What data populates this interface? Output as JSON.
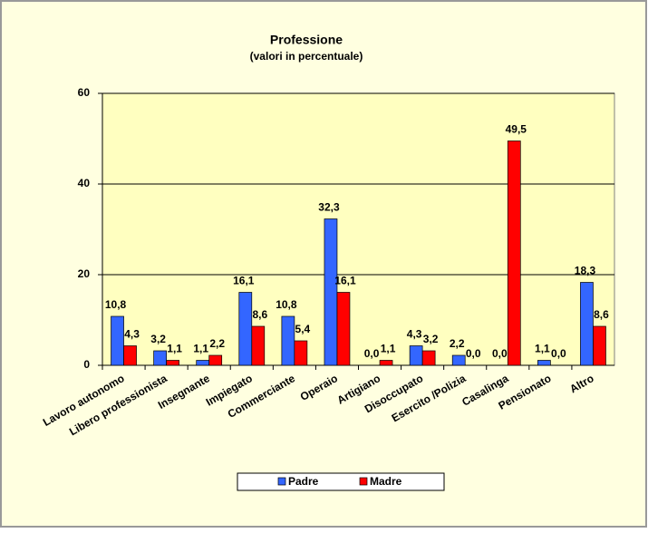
{
  "chart_data": {
    "type": "bar",
    "title": "Professione",
    "subtitle": "(valori in percentuale)",
    "categories": [
      "Lavoro autonomo",
      "Libero professionista",
      "Insegnante",
      "Impiegato",
      "Commerciante",
      "Operaio",
      "Artigiano",
      "Disoccupato",
      "Esercito /Polizia",
      "Casalinga",
      "Pensionato",
      "Altro"
    ],
    "series": [
      {
        "name": "Padre",
        "color": "#3366ff",
        "values": [
          10.8,
          3.2,
          1.1,
          16.1,
          10.8,
          32.3,
          0.0,
          4.3,
          2.2,
          0.0,
          1.1,
          18.3
        ],
        "value_labels": [
          "10,8",
          "3,2",
          "1,1",
          "16,1",
          "10,8",
          "32,3",
          "0,0",
          "4,3",
          "2,2",
          "0,0",
          "1,1",
          "18,3"
        ]
      },
      {
        "name": "Madre",
        "color": "#ff0000",
        "values": [
          4.3,
          1.1,
          2.2,
          8.6,
          5.4,
          16.1,
          1.1,
          3.2,
          0.0,
          49.5,
          0.0,
          8.6
        ],
        "value_labels": [
          "4,3",
          "1,1",
          "2,2",
          "8,6",
          "5,4",
          "16,1",
          "1,1",
          "3,2",
          "0,0",
          "49,5",
          "0,0",
          "8,6"
        ]
      }
    ],
    "ylim": [
      0,
      60
    ],
    "yticks": [
      0,
      20,
      40,
      60
    ],
    "grid": true
  }
}
